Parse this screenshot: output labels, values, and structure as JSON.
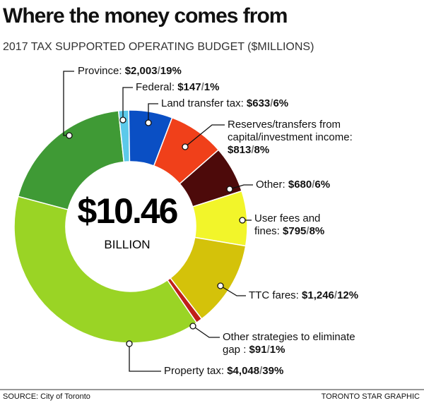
{
  "chart_data": {
    "type": "donut",
    "title": "Where the money comes from",
    "subtitle": "2017 TAX SUPPORTED OPERATING BUDGET ($MILLIONS)",
    "center_value": "$10.46",
    "center_unit": "BILLION",
    "separator": "/",
    "categories": [
      "Province:",
      "Federal:",
      "Land transfer tax:",
      "Reserves/transfers from capital/investment income:",
      "Other:",
      "User fees and fines:",
      "TTC fares:",
      "Other strategies to eliminate gap :",
      "Property tax:"
    ],
    "values": [
      2003,
      147,
      633,
      813,
      680,
      795,
      1246,
      91,
      4048
    ],
    "value_labels": [
      "$2,003",
      "$147",
      "$633",
      "$813",
      "$680",
      "$795",
      "$1,246",
      "$91",
      "$4,048"
    ],
    "percents": [
      19,
      1,
      6,
      8,
      6,
      8,
      12,
      1,
      39
    ],
    "percent_labels": [
      "19%",
      "1%",
      "6%",
      "8%",
      "6%",
      "8%",
      "12%",
      "1%",
      "39%"
    ],
    "colors": [
      "#3f9a35",
      "#5cc9ea",
      "#0a4fc4",
      "#f0401a",
      "#4d0a0a",
      "#f2f52a",
      "#d4c20a",
      "#c0201a",
      "#9ad425"
    ],
    "source": "SOURCE: City of Toronto",
    "credit": "TORONTO STAR GRAPHIC"
  }
}
